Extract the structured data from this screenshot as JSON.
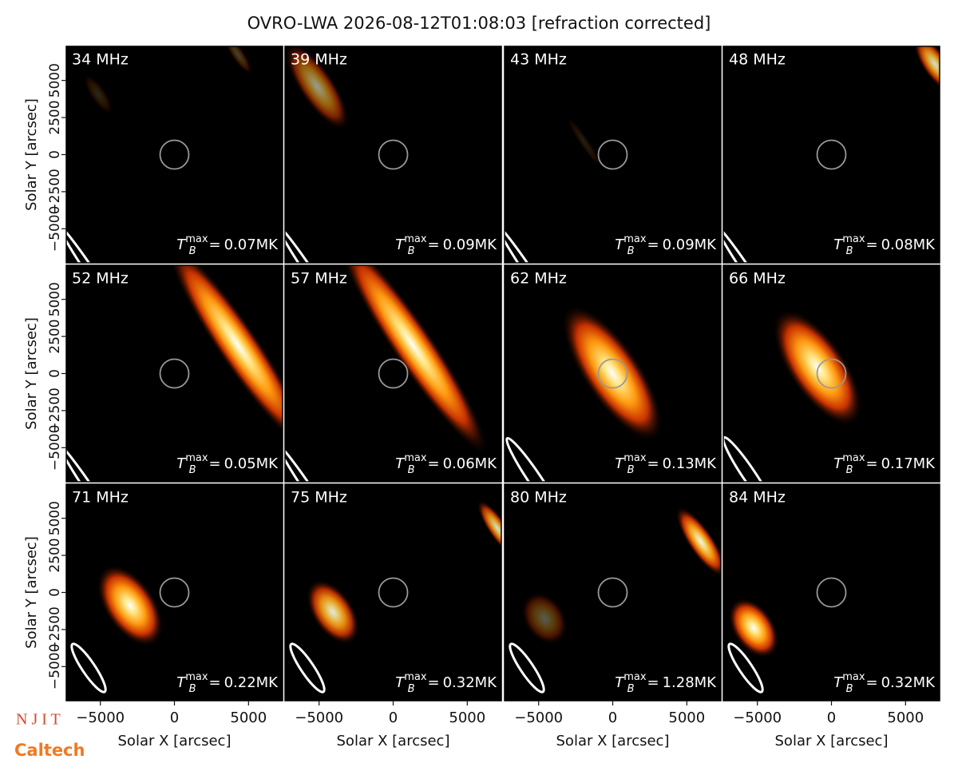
{
  "title": "OVRO-LWA 2026-08-12T01:08:03 [refraction corrected]",
  "tb_symbol": "T",
  "tb_sub": "B",
  "tb_sup": "max",
  "equals": "=",
  "logos": {
    "njit": "N J I T",
    "caltech": "Caltech"
  },
  "chart_data": [
    {
      "type": "image",
      "title": "34 MHz",
      "tmax_label": "0.07MK",
      "xlim": [
        -7300,
        7300
      ],
      "ylim": [
        -7300,
        7300
      ],
      "ylabel": "Solar Y [arcsec]",
      "yticks": [
        {
          "value": -5000,
          "label": "−5000"
        },
        {
          "value": -2500,
          "label": "−2500"
        },
        0,
        2500,
        5000
      ]
    },
    {
      "type": "image",
      "title": "39 MHz",
      "tmax_label": "0.09MK",
      "xlim": [
        -7300,
        7300
      ],
      "ylim": [
        -7300,
        7300
      ]
    },
    {
      "type": "image",
      "title": "43 MHz",
      "tmax_label": "0.09MK",
      "xlim": [
        -7300,
        7300
      ],
      "ylim": [
        -7300,
        7300
      ]
    },
    {
      "type": "image",
      "title": "48 MHz",
      "tmax_label": "0.08MK",
      "xlim": [
        -7300,
        7300
      ],
      "ylim": [
        -7300,
        7300
      ]
    },
    {
      "type": "image",
      "title": "52 MHz",
      "tmax_label": "0.05MK",
      "xlim": [
        -7300,
        7300
      ],
      "ylim": [
        -7300,
        7300
      ],
      "ylabel": "Solar Y [arcsec]",
      "yticks": [
        {
          "value": -5000,
          "label": "−5000"
        },
        {
          "value": -2500,
          "label": "−2500"
        },
        0,
        2500,
        5000
      ]
    },
    {
      "type": "image",
      "title": "57 MHz",
      "tmax_label": "0.06MK",
      "xlim": [
        -7300,
        7300
      ],
      "ylim": [
        -7300,
        7300
      ]
    },
    {
      "type": "image",
      "title": "62 MHz",
      "tmax_label": "0.13MK",
      "xlim": [
        -7300,
        7300
      ],
      "ylim": [
        -7300,
        7300
      ]
    },
    {
      "type": "image",
      "title": "66 MHz",
      "tmax_label": "0.17MK",
      "xlim": [
        -7300,
        7300
      ],
      "ylim": [
        -7300,
        7300
      ]
    },
    {
      "type": "image",
      "title": "71 MHz",
      "tmax_label": "0.22MK",
      "xlim": [
        -7300,
        7300
      ],
      "ylim": [
        -7300,
        7300
      ],
      "ylabel": "Solar Y [arcsec]",
      "xlabel": "Solar X [arcsec]",
      "yticks": [
        {
          "value": -5000,
          "label": "−5000"
        },
        {
          "value": -2500,
          "label": "−2500"
        },
        0,
        2500,
        5000
      ],
      "xticks": [
        {
          "value": -5000,
          "label": "−5000"
        },
        0,
        5000
      ]
    },
    {
      "type": "image",
      "title": "75 MHz",
      "tmax_label": "0.32MK",
      "xlim": [
        -7300,
        7300
      ],
      "ylim": [
        -7300,
        7300
      ],
      "xlabel": "Solar X [arcsec]",
      "xticks": [
        {
          "value": -5000,
          "label": "−5000"
        },
        0,
        5000
      ]
    },
    {
      "type": "image",
      "title": "80 MHz",
      "tmax_label": "1.28MK",
      "xlim": [
        -7300,
        7300
      ],
      "ylim": [
        -7300,
        7300
      ],
      "xlabel": "Solar X [arcsec]",
      "xticks": [
        {
          "value": -5000,
          "label": "−5000"
        },
        0,
        5000
      ]
    },
    {
      "type": "image",
      "title": "84 MHz",
      "tmax_label": "0.32MK",
      "xlim": [
        -7300,
        7300
      ],
      "ylim": [
        -7300,
        7300
      ],
      "xlabel": "Solar X [arcsec]",
      "xticks": [
        {
          "value": -5000,
          "label": "−5000"
        },
        0,
        5000
      ]
    }
  ]
}
